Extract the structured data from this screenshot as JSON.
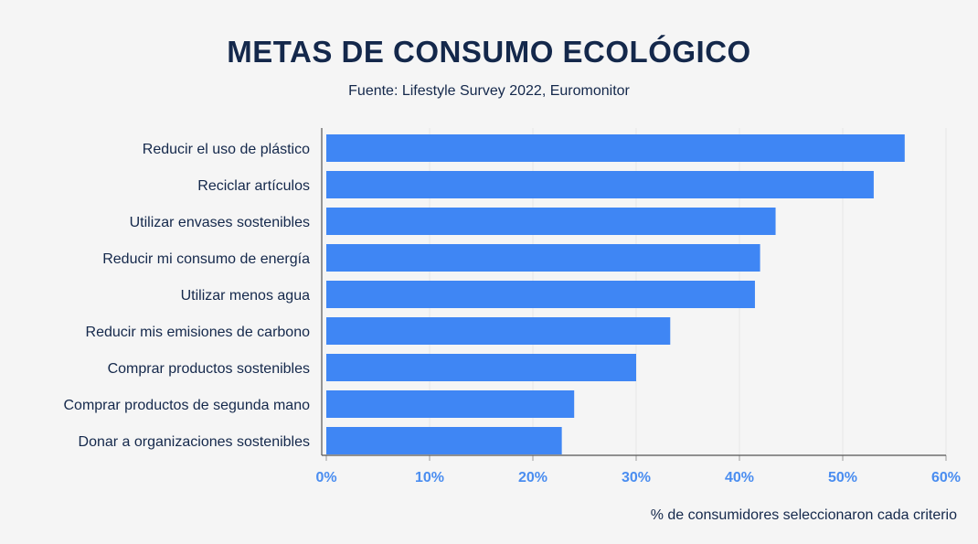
{
  "chart_data": {
    "type": "bar",
    "orientation": "horizontal",
    "title": "METAS DE CONSUMO ECOLÓGICO",
    "subtitle": "Fuente: Lifestyle Survey 2022, Euromonitor",
    "categories": [
      "Reducir el uso de plástico",
      "Reciclar artículos",
      "Utilizar envases sostenibles",
      "Reducir mi consumo de energía",
      "Utilizar menos agua",
      "Reducir mis emisiones de carbono",
      "Comprar productos sostenibles",
      "Comprar productos de segunda mano",
      "Donar a organizaciones sostenibles"
    ],
    "values": [
      56,
      53,
      43.5,
      42,
      41.5,
      33.3,
      30,
      24,
      22.8
    ],
    "xlim": [
      0,
      60
    ],
    "xticks": [
      "0%",
      "10%",
      "20%",
      "30%",
      "40%",
      "50%",
      "60%"
    ],
    "xlabel": "% de consumidores seleccionaron cada criterio",
    "ylabel": "",
    "grid": true,
    "bar_color": "#3f86f4"
  }
}
